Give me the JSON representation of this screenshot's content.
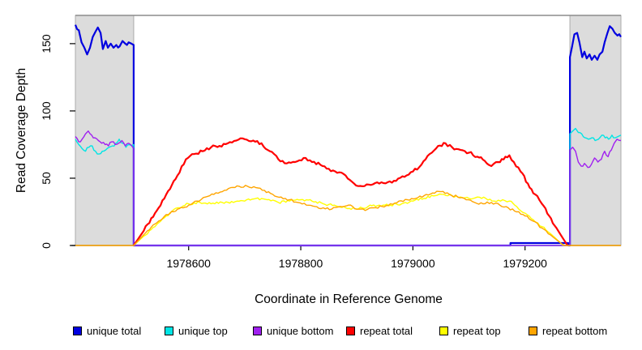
{
  "chart_data": {
    "type": "line",
    "title": "",
    "xlabel": "Coordinate in Reference Genome",
    "ylabel": "Read Coverage Depth",
    "xlim": [
      1978398,
      1979371
    ],
    "ylim": [
      0,
      171
    ],
    "grid": false,
    "legend_position": "bottom",
    "x_ticks": [
      1978600,
      1978800,
      1979000,
      1979200
    ],
    "x_tick_labels": [
      "1978600",
      "1978800",
      "1979000",
      "1979200"
    ],
    "y_ticks": [
      0,
      50,
      100,
      150
    ],
    "y_tick_labels": [
      "0",
      "50",
      "100",
      "150"
    ],
    "colors": {
      "shade_fill": "#DCDCDC",
      "shade_border": "#ABABAB",
      "axis": "#000000",
      "top_border": "#8C8C8C"
    },
    "shaded_regions": [
      {
        "x0": 1978398,
        "x1": 1978502
      },
      {
        "x0": 1979280,
        "x1": 1979371
      }
    ],
    "series": [
      {
        "name": "unique total",
        "color": "#0000E0",
        "width": 2.2,
        "noise": 1.6,
        "points": [
          [
            1978398,
            164
          ],
          [
            1978404,
            160
          ],
          [
            1978409,
            151
          ],
          [
            1978414,
            147
          ],
          [
            1978419,
            142
          ],
          [
            1978424,
            147
          ],
          [
            1978429,
            155
          ],
          [
            1978434,
            159
          ],
          [
            1978438,
            162
          ],
          [
            1978443,
            158
          ],
          [
            1978447,
            146
          ],
          [
            1978452,
            152
          ],
          [
            1978456,
            147
          ],
          [
            1978461,
            150
          ],
          [
            1978466,
            147
          ],
          [
            1978471,
            149
          ],
          [
            1978477,
            148
          ],
          [
            1978482,
            152
          ],
          [
            1978487,
            150
          ],
          [
            1978493,
            151
          ],
          [
            1978498,
            150
          ],
          [
            1978502,
            149
          ],
          [
            1978502,
            0
          ],
          [
            1979174,
            0
          ],
          [
            1979174,
            1.8
          ],
          [
            1979277,
            1.8
          ],
          [
            1979277,
            0
          ],
          [
            1979280,
            0
          ],
          [
            1979280,
            140
          ],
          [
            1979284,
            148
          ],
          [
            1979288,
            157
          ],
          [
            1979293,
            158
          ],
          [
            1979297,
            151
          ],
          [
            1979302,
            140
          ],
          [
            1979306,
            144
          ],
          [
            1979310,
            139
          ],
          [
            1979315,
            142
          ],
          [
            1979319,
            138
          ],
          [
            1979324,
            141
          ],
          [
            1979329,
            138
          ],
          [
            1979333,
            142
          ],
          [
            1979338,
            144
          ],
          [
            1979342,
            151
          ],
          [
            1979347,
            158
          ],
          [
            1979351,
            163
          ],
          [
            1979356,
            161
          ],
          [
            1979360,
            158
          ],
          [
            1979365,
            156
          ],
          [
            1979371,
            155
          ]
        ]
      },
      {
        "name": "unique top",
        "color": "#00E5E5",
        "width": 1.4,
        "noise": 1.2,
        "points": [
          [
            1978398,
            79
          ],
          [
            1978404,
            75
          ],
          [
            1978410,
            72
          ],
          [
            1978416,
            70
          ],
          [
            1978422,
            73
          ],
          [
            1978428,
            74
          ],
          [
            1978434,
            70
          ],
          [
            1978440,
            68
          ],
          [
            1978446,
            70
          ],
          [
            1978452,
            71
          ],
          [
            1978458,
            73
          ],
          [
            1978464,
            74
          ],
          [
            1978470,
            76
          ],
          [
            1978476,
            79
          ],
          [
            1978482,
            76
          ],
          [
            1978488,
            73
          ],
          [
            1978494,
            75
          ],
          [
            1978502,
            75
          ],
          [
            1978502,
            0
          ],
          [
            1979280,
            0
          ],
          [
            1979280,
            83
          ],
          [
            1979285,
            85
          ],
          [
            1979290,
            87
          ],
          [
            1979295,
            84
          ],
          [
            1979301,
            83
          ],
          [
            1979307,
            80
          ],
          [
            1979313,
            79
          ],
          [
            1979319,
            80
          ],
          [
            1979325,
            78
          ],
          [
            1979331,
            79
          ],
          [
            1979337,
            82
          ],
          [
            1979343,
            80
          ],
          [
            1979349,
            79
          ],
          [
            1979355,
            82
          ],
          [
            1979361,
            80
          ],
          [
            1979366,
            81
          ],
          [
            1979371,
            82
          ]
        ]
      },
      {
        "name": "unique bottom",
        "color": "#A020F0",
        "width": 1.4,
        "noise": 1.2,
        "points": [
          [
            1978398,
            81
          ],
          [
            1978404,
            77
          ],
          [
            1978410,
            79
          ],
          [
            1978416,
            83
          ],
          [
            1978421,
            85
          ],
          [
            1978427,
            82
          ],
          [
            1978433,
            80
          ],
          [
            1978439,
            78
          ],
          [
            1978445,
            76
          ],
          [
            1978451,
            75
          ],
          [
            1978457,
            74
          ],
          [
            1978463,
            77
          ],
          [
            1978469,
            75
          ],
          [
            1978475,
            76
          ],
          [
            1978481,
            78
          ],
          [
            1978487,
            74
          ],
          [
            1978493,
            76
          ],
          [
            1978502,
            72
          ],
          [
            1978502,
            0
          ],
          [
            1979280,
            0
          ],
          [
            1979280,
            71
          ],
          [
            1979285,
            73
          ],
          [
            1979290,
            70
          ],
          [
            1979295,
            62
          ],
          [
            1979300,
            59
          ],
          [
            1979306,
            61
          ],
          [
            1979312,
            58
          ],
          [
            1979318,
            60
          ],
          [
            1979324,
            65
          ],
          [
            1979330,
            62
          ],
          [
            1979336,
            64
          ],
          [
            1979342,
            70
          ],
          [
            1979348,
            66
          ],
          [
            1979354,
            71
          ],
          [
            1979359,
            76
          ],
          [
            1979364,
            79
          ],
          [
            1979371,
            78
          ]
        ]
      },
      {
        "name": "repeat total",
        "color": "#FF0000",
        "width": 2.2,
        "noise": 1.2,
        "points": [
          [
            1978502,
            0
          ],
          [
            1978520,
            11
          ],
          [
            1978540,
            24
          ],
          [
            1978560,
            38
          ],
          [
            1978580,
            52
          ],
          [
            1978595,
            64
          ],
          [
            1978610,
            68
          ],
          [
            1978625,
            70
          ],
          [
            1978640,
            73
          ],
          [
            1978655,
            74
          ],
          [
            1978670,
            76
          ],
          [
            1978685,
            78
          ],
          [
            1978700,
            79
          ],
          [
            1978715,
            78
          ],
          [
            1978730,
            76
          ],
          [
            1978745,
            70
          ],
          [
            1978760,
            64
          ],
          [
            1978775,
            61
          ],
          [
            1978790,
            62
          ],
          [
            1978805,
            65
          ],
          [
            1978820,
            62
          ],
          [
            1978835,
            60
          ],
          [
            1978850,
            57
          ],
          [
            1978865,
            54
          ],
          [
            1978880,
            52
          ],
          [
            1978895,
            46
          ],
          [
            1978910,
            44
          ],
          [
            1978925,
            45
          ],
          [
            1978940,
            46
          ],
          [
            1978955,
            47
          ],
          [
            1978970,
            48
          ],
          [
            1978985,
            51
          ],
          [
            1979000,
            55
          ],
          [
            1979015,
            60
          ],
          [
            1979030,
            68
          ],
          [
            1979045,
            74
          ],
          [
            1979058,
            76
          ],
          [
            1979070,
            73
          ],
          [
            1979085,
            71
          ],
          [
            1979100,
            69
          ],
          [
            1979115,
            66
          ],
          [
            1979128,
            63
          ],
          [
            1979140,
            59
          ],
          [
            1979152,
            62
          ],
          [
            1979165,
            66
          ],
          [
            1979172,
            67
          ],
          [
            1979180,
            62
          ],
          [
            1979192,
            55
          ],
          [
            1979205,
            46
          ],
          [
            1979218,
            38
          ],
          [
            1979230,
            31
          ],
          [
            1979243,
            22
          ],
          [
            1979256,
            13
          ],
          [
            1979268,
            5
          ],
          [
            1979276,
            0
          ]
        ]
      },
      {
        "name": "repeat top",
        "color": "#FFFF00",
        "width": 1.4,
        "noise": 0.9,
        "points": [
          [
            1978502,
            0
          ],
          [
            1978520,
            7
          ],
          [
            1978540,
            14
          ],
          [
            1978560,
            22
          ],
          [
            1978580,
            28
          ],
          [
            1978600,
            31
          ],
          [
            1978620,
            32
          ],
          [
            1978640,
            31
          ],
          [
            1978660,
            32
          ],
          [
            1978680,
            32
          ],
          [
            1978700,
            33
          ],
          [
            1978720,
            35
          ],
          [
            1978740,
            34
          ],
          [
            1978760,
            32
          ],
          [
            1978780,
            33
          ],
          [
            1978800,
            34
          ],
          [
            1978820,
            33
          ],
          [
            1978840,
            31
          ],
          [
            1978860,
            30
          ],
          [
            1978880,
            28
          ],
          [
            1978900,
            27
          ],
          [
            1978920,
            29
          ],
          [
            1978940,
            30
          ],
          [
            1978960,
            30
          ],
          [
            1978980,
            31
          ],
          [
            1979000,
            33
          ],
          [
            1979020,
            35
          ],
          [
            1979040,
            37
          ],
          [
            1979055,
            38
          ],
          [
            1979070,
            37
          ],
          [
            1979085,
            36
          ],
          [
            1979100,
            35
          ],
          [
            1979115,
            36
          ],
          [
            1979130,
            35
          ],
          [
            1979145,
            33
          ],
          [
            1979160,
            34
          ],
          [
            1979172,
            33
          ],
          [
            1979185,
            29
          ],
          [
            1979200,
            24
          ],
          [
            1979215,
            19
          ],
          [
            1979230,
            14
          ],
          [
            1979245,
            9
          ],
          [
            1979258,
            4
          ],
          [
            1979268,
            0
          ]
        ]
      },
      {
        "name": "repeat bottom",
        "color": "#FFA500",
        "width": 1.4,
        "noise": 0.9,
        "points": [
          [
            1978398,
            0
          ],
          [
            1978502,
            0
          ],
          [
            1978520,
            8
          ],
          [
            1978540,
            16
          ],
          [
            1978560,
            23
          ],
          [
            1978580,
            27
          ],
          [
            1978600,
            30
          ],
          [
            1978615,
            33
          ],
          [
            1978630,
            36
          ],
          [
            1978645,
            38
          ],
          [
            1978660,
            40
          ],
          [
            1978675,
            43
          ],
          [
            1978690,
            44
          ],
          [
            1978705,
            44
          ],
          [
            1978720,
            43
          ],
          [
            1978735,
            41
          ],
          [
            1978750,
            38
          ],
          [
            1978765,
            36
          ],
          [
            1978780,
            34
          ],
          [
            1978795,
            32
          ],
          [
            1978810,
            30
          ],
          [
            1978825,
            29
          ],
          [
            1978840,
            28
          ],
          [
            1978855,
            27
          ],
          [
            1978870,
            29
          ],
          [
            1978885,
            30
          ],
          [
            1978900,
            27
          ],
          [
            1978915,
            26
          ],
          [
            1978930,
            28
          ],
          [
            1978945,
            29
          ],
          [
            1978960,
            31
          ],
          [
            1978975,
            33
          ],
          [
            1978990,
            34
          ],
          [
            1979005,
            35
          ],
          [
            1979020,
            37
          ],
          [
            1979035,
            39
          ],
          [
            1979050,
            40
          ],
          [
            1979065,
            38
          ],
          [
            1979080,
            36
          ],
          [
            1979095,
            34
          ],
          [
            1979110,
            32
          ],
          [
            1979125,
            31
          ],
          [
            1979140,
            32
          ],
          [
            1979155,
            30
          ],
          [
            1979170,
            28
          ],
          [
            1979185,
            25
          ],
          [
            1979200,
            22
          ],
          [
            1979215,
            18
          ],
          [
            1979230,
            13
          ],
          [
            1979245,
            8
          ],
          [
            1979260,
            3
          ],
          [
            1979270,
            0
          ],
          [
            1979280,
            0
          ],
          [
            1979371,
            0
          ]
        ]
      }
    ]
  },
  "legend": {
    "items": [
      {
        "label": "unique total",
        "color": "#0000E0"
      },
      {
        "label": "unique top",
        "color": "#00E5E5"
      },
      {
        "label": "unique bottom",
        "color": "#A020F0"
      },
      {
        "label": "repeat total",
        "color": "#FF0000"
      },
      {
        "label": "repeat top",
        "color": "#FFFF00"
      },
      {
        "label": "repeat bottom",
        "color": "#FFA500"
      }
    ]
  }
}
